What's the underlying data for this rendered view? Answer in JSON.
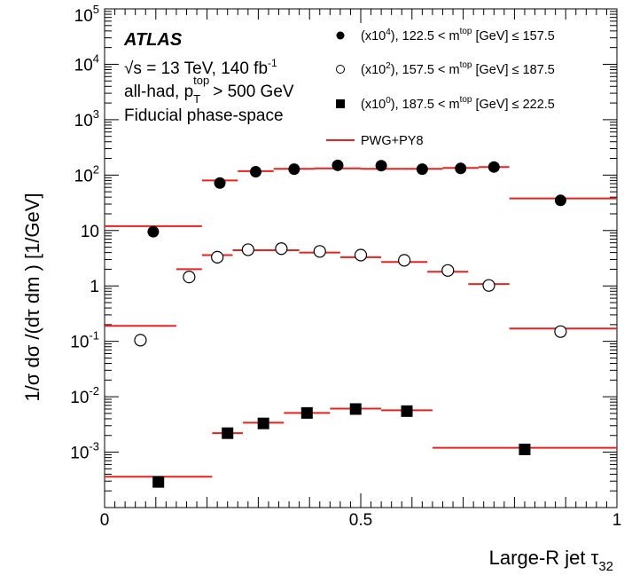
{
  "chart_data": {
    "type": "scatter",
    "x_label": "Large-R jet τ",
    "x_label_sub": "32",
    "y_label": "1/σ dσ /(dτ dm ) [1/GeV]",
    "xlim": [
      0,
      1
    ],
    "ylim": [
      0.0001,
      100000
    ],
    "y_scale": "log",
    "x_ticks": [
      "0",
      "0.5",
      "1"
    ],
    "y_ticks": [
      {
        "base": "10",
        "exp": "-3"
      },
      {
        "base": "10",
        "exp": "-2"
      },
      {
        "base": "10",
        "exp": "-1"
      },
      {
        "base": "1",
        "exp": ""
      },
      {
        "base": "10",
        "exp": ""
      },
      {
        "base": "10",
        "exp": "2"
      },
      {
        "base": "10",
        "exp": "3"
      },
      {
        "base": "10",
        "exp": "4"
      },
      {
        "base": "10",
        "exp": "5"
      }
    ],
    "annotations": {
      "experiment": "ATLAS",
      "energy": "√s = 13 TeV, 140  fb",
      "energy_sup": "-1",
      "selection": "all-had, p",
      "selection_sub": "T",
      "selection_sup": "top",
      "selection_rest": "> 500 GeV",
      "phase_space": "Fiducial phase-space"
    },
    "legend": [
      {
        "scale": "(x10",
        "scale_exp": "4",
        "range": "), 122.5 < m",
        "range_sup": "top",
        "rest": " [GeV] ≤ 157.5",
        "marker": "filled-circle"
      },
      {
        "scale": "(x10",
        "scale_exp": "2",
        "range": "), 157.5 < m",
        "range_sup": "top",
        "rest": " [GeV] ≤ 187.5",
        "marker": "open-circle"
      },
      {
        "scale": "(x10",
        "scale_exp": "0",
        "range": "), 187.5 < m",
        "range_sup": "top",
        "rest": " [GeV] ≤ 222.5",
        "marker": "filled-square"
      },
      {
        "label": "PWG+PY8",
        "marker": "line"
      }
    ],
    "line_color": "#e8231f",
    "series": [
      {
        "marker": "filled-circle",
        "points": [
          {
            "x": 0.095,
            "y": 9.5
          },
          {
            "x": 0.225,
            "y": 72
          },
          {
            "x": 0.295,
            "y": 115
          },
          {
            "x": 0.37,
            "y": 128
          },
          {
            "x": 0.455,
            "y": 150
          },
          {
            "x": 0.54,
            "y": 148
          },
          {
            "x": 0.62,
            "y": 128
          },
          {
            "x": 0.695,
            "y": 132
          },
          {
            "x": 0.76,
            "y": 140
          },
          {
            "x": 0.89,
            "y": 35
          }
        ],
        "prediction": [
          {
            "x0": 0.0,
            "x1": 0.19,
            "y": 12
          },
          {
            "x0": 0.19,
            "x1": 0.26,
            "y": 80
          },
          {
            "x0": 0.26,
            "x1": 0.33,
            "y": 118
          },
          {
            "x0": 0.33,
            "x1": 0.41,
            "y": 130
          },
          {
            "x0": 0.41,
            "x1": 0.5,
            "y": 132
          },
          {
            "x0": 0.5,
            "x1": 0.58,
            "y": 130
          },
          {
            "x0": 0.58,
            "x1": 0.66,
            "y": 130
          },
          {
            "x0": 0.66,
            "x1": 0.73,
            "y": 135
          },
          {
            "x0": 0.73,
            "x1": 0.79,
            "y": 140
          },
          {
            "x0": 0.79,
            "x1": 1.0,
            "y": 38
          }
        ]
      },
      {
        "marker": "open-circle",
        "points": [
          {
            "x": 0.07,
            "y": 0.105
          },
          {
            "x": 0.165,
            "y": 1.45
          },
          {
            "x": 0.22,
            "y": 3.3
          },
          {
            "x": 0.28,
            "y": 4.5
          },
          {
            "x": 0.345,
            "y": 4.7
          },
          {
            "x": 0.42,
            "y": 4.2
          },
          {
            "x": 0.5,
            "y": 3.6
          },
          {
            "x": 0.585,
            "y": 2.9
          },
          {
            "x": 0.67,
            "y": 1.9
          },
          {
            "x": 0.75,
            "y": 1.02
          },
          {
            "x": 0.89,
            "y": 0.15
          }
        ],
        "prediction": [
          {
            "x0": 0.0,
            "x1": 0.14,
            "y": 0.19
          },
          {
            "x0": 0.14,
            "x1": 0.19,
            "y": 2.0
          },
          {
            "x0": 0.19,
            "x1": 0.25,
            "y": 3.6
          },
          {
            "x0": 0.25,
            "x1": 0.31,
            "y": 4.4
          },
          {
            "x0": 0.31,
            "x1": 0.38,
            "y": 4.4
          },
          {
            "x0": 0.38,
            "x1": 0.46,
            "y": 4.0
          },
          {
            "x0": 0.46,
            "x1": 0.54,
            "y": 3.3
          },
          {
            "x0": 0.54,
            "x1": 0.63,
            "y": 2.7
          },
          {
            "x0": 0.63,
            "x1": 0.71,
            "y": 1.8
          },
          {
            "x0": 0.71,
            "x1": 0.79,
            "y": 1.08
          },
          {
            "x0": 0.79,
            "x1": 1.0,
            "y": 0.17
          }
        ]
      },
      {
        "marker": "filled-square",
        "points": [
          {
            "x": 0.105,
            "y": 0.00029
          },
          {
            "x": 0.24,
            "y": 0.0022
          },
          {
            "x": 0.31,
            "y": 0.0033
          },
          {
            "x": 0.395,
            "y": 0.0051
          },
          {
            "x": 0.49,
            "y": 0.006
          },
          {
            "x": 0.59,
            "y": 0.0055
          },
          {
            "x": 0.82,
            "y": 0.00112
          }
        ],
        "prediction": [
          {
            "x0": 0.0,
            "x1": 0.21,
            "y": 0.00036
          },
          {
            "x0": 0.21,
            "x1": 0.27,
            "y": 0.0022
          },
          {
            "x0": 0.27,
            "x1": 0.35,
            "y": 0.0034
          },
          {
            "x0": 0.35,
            "x1": 0.44,
            "y": 0.0051
          },
          {
            "x0": 0.44,
            "x1": 0.54,
            "y": 0.0061
          },
          {
            "x0": 0.54,
            "x1": 0.64,
            "y": 0.0057
          },
          {
            "x0": 0.64,
            "x1": 1.0,
            "y": 0.0012
          }
        ]
      }
    ]
  }
}
